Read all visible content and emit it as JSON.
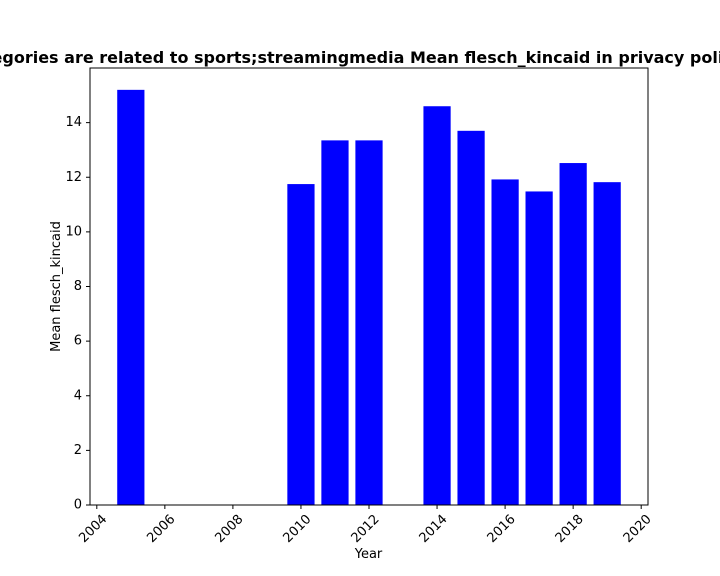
{
  "chart_data": {
    "type": "bar",
    "title": "Categories are related to sports;streamingmedia Mean flesch_kincaid in privacy policies",
    "xlabel": "Year",
    "ylabel": "Mean flesch_kincaid",
    "x": [
      2005,
      2010,
      2011,
      2012,
      2014,
      2015,
      2016,
      2017,
      2018,
      2019
    ],
    "values": [
      15.2,
      11.75,
      13.35,
      13.35,
      14.6,
      13.7,
      11.92,
      11.48,
      12.52,
      11.82
    ],
    "xlim": [
      2003.8,
      2020.2
    ],
    "ylim": [
      0,
      16
    ],
    "xticks": [
      2004,
      2006,
      2008,
      2010,
      2012,
      2014,
      2016,
      2018,
      2020
    ],
    "xtick_labels": [
      "2004",
      "2006",
      "2008",
      "2010",
      "2012",
      "2014",
      "2016",
      "2018",
      "2020"
    ],
    "yticks": [
      0,
      2,
      4,
      6,
      8,
      10,
      12,
      14
    ],
    "ytick_labels": [
      "0",
      "2",
      "4",
      "6",
      "8",
      "10",
      "12",
      "14"
    ],
    "bar_color": "#0000ff",
    "grid": false,
    "legend": "none"
  }
}
